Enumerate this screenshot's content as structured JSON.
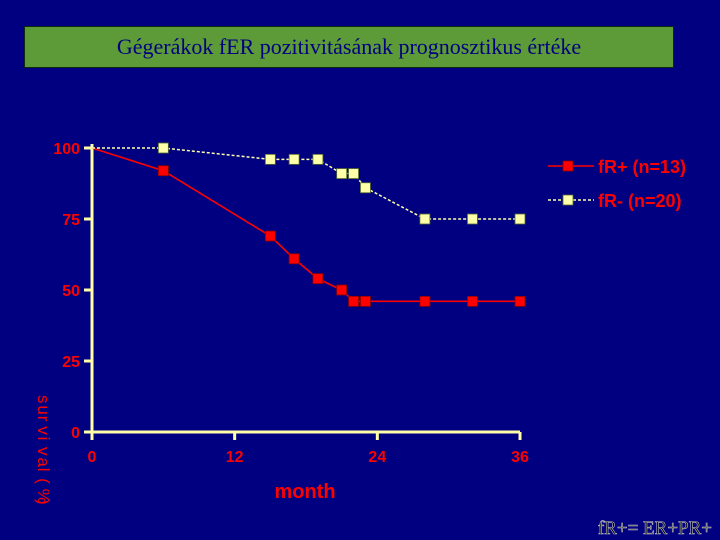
{
  "header": {
    "title": "Gégerákok fER pozitivitásának prognosztikus értéke"
  },
  "footnote": "fR+= ER+PR+",
  "colors": {
    "background": "#000080",
    "title_box": "#5c9b37",
    "title_text": "#000080",
    "axis": "#ffffaa",
    "label": "#ff0000",
    "series_pos": "#ff0000",
    "series_neg": "#ffffaa"
  },
  "chart_data": {
    "type": "line",
    "title": "",
    "xlabel": "month",
    "ylabel": "survival(%)",
    "xlim": [
      0,
      36
    ],
    "ylim": [
      0,
      100
    ],
    "xticks": [
      0,
      12,
      24,
      36
    ],
    "yticks": [
      0,
      25,
      50,
      75,
      100
    ],
    "legend_position": "top-right",
    "series": [
      {
        "name": "fR+ (n=13)",
        "color": "#ff0000",
        "style": "solid",
        "x": [
          0,
          6,
          15,
          17,
          19,
          21,
          22,
          23,
          28,
          32,
          36
        ],
        "y": [
          100,
          92,
          69,
          61,
          54,
          50,
          46,
          46,
          46,
          46,
          46
        ]
      },
      {
        "name": "fR- (n=20)",
        "color": "#ffffaa",
        "style": "dashed",
        "x": [
          0,
          6,
          15,
          17,
          19,
          21,
          22,
          23,
          28,
          32,
          36
        ],
        "y": [
          100,
          100,
          96,
          96,
          96,
          91,
          91,
          86,
          75,
          75,
          75
        ]
      }
    ]
  }
}
